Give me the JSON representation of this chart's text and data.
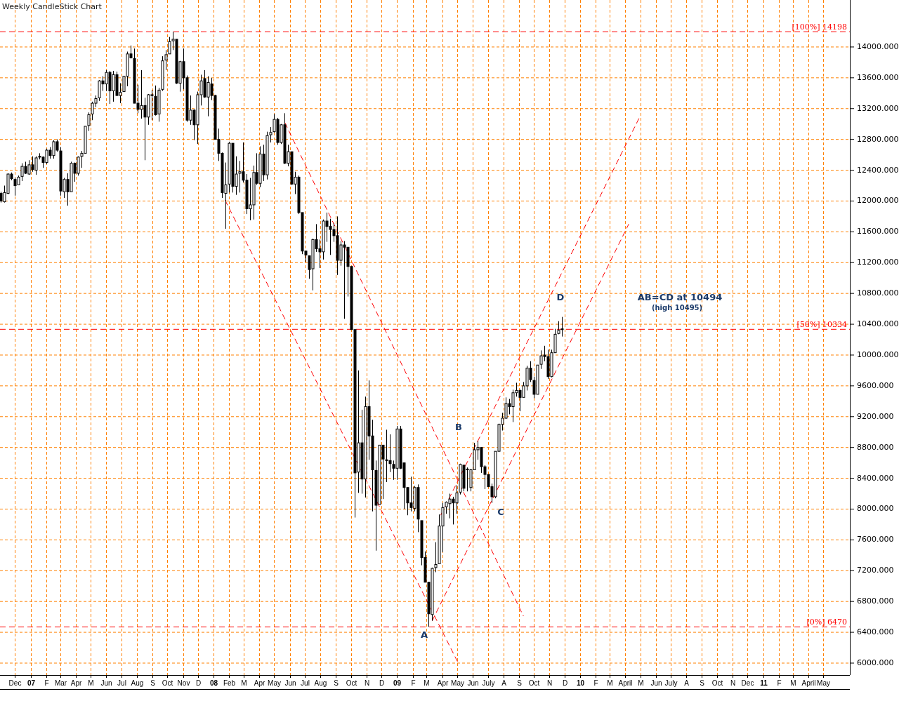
{
  "chart_data": {
    "type": "candlestick",
    "title": "Weekly CandleStick Chart",
    "x": [
      "2006-11-02",
      "2006-11-09",
      "2006-11-16",
      "2006-11-23",
      "2006-11-30",
      "2006-12-07",
      "2006-12-14",
      "2006-12-21",
      "2006-12-28",
      "2007-01-04",
      "2007-01-11",
      "2007-01-18",
      "2007-01-25",
      "2007-02-01",
      "2007-02-08",
      "2007-02-15",
      "2007-02-22",
      "2007-03-01",
      "2007-03-08",
      "2007-03-15",
      "2007-03-22",
      "2007-03-29",
      "2007-04-05",
      "2007-04-12",
      "2007-04-19",
      "2007-04-26",
      "2007-05-03",
      "2007-05-10",
      "2007-05-17",
      "2007-05-24",
      "2007-05-31",
      "2007-06-07",
      "2007-06-14",
      "2007-06-21",
      "2007-06-28",
      "2007-07-05",
      "2007-07-12",
      "2007-07-19",
      "2007-07-26",
      "2007-08-02",
      "2007-08-09",
      "2007-08-16",
      "2007-08-23",
      "2007-08-30",
      "2007-09-06",
      "2007-09-13",
      "2007-09-20",
      "2007-09-27",
      "2007-10-04",
      "2007-10-11",
      "2007-10-18",
      "2007-10-25",
      "2007-11-01",
      "2007-11-08",
      "2007-11-15",
      "2007-11-22",
      "2007-11-29",
      "2007-12-06",
      "2007-12-13",
      "2007-12-20",
      "2007-12-27",
      "2008-01-03",
      "2008-01-10",
      "2008-01-17",
      "2008-01-24",
      "2008-01-31",
      "2008-02-07",
      "2008-02-14",
      "2008-02-21",
      "2008-02-28",
      "2008-03-06",
      "2008-03-13",
      "2008-03-20",
      "2008-03-27",
      "2008-04-03",
      "2008-04-10",
      "2008-04-17",
      "2008-04-24",
      "2008-05-01",
      "2008-05-08",
      "2008-05-15",
      "2008-05-22",
      "2008-05-29",
      "2008-06-05",
      "2008-06-12",
      "2008-06-19",
      "2008-06-26",
      "2008-07-03",
      "2008-07-10",
      "2008-07-17",
      "2008-07-24",
      "2008-07-31",
      "2008-08-07",
      "2008-08-14",
      "2008-08-21",
      "2008-08-28",
      "2008-09-04",
      "2008-09-11",
      "2008-09-18",
      "2008-09-25",
      "2008-10-02",
      "2008-10-09",
      "2008-10-16",
      "2008-10-23",
      "2008-10-30",
      "2008-11-06",
      "2008-11-13",
      "2008-11-20",
      "2008-11-27",
      "2008-12-04",
      "2008-12-11",
      "2008-12-18",
      "2008-12-25",
      "2009-01-01",
      "2009-01-08",
      "2009-01-15",
      "2009-01-22",
      "2009-01-29",
      "2009-02-05",
      "2009-02-12",
      "2009-02-19",
      "2009-02-26",
      "2009-03-05",
      "2009-03-12",
      "2009-03-19",
      "2009-03-26",
      "2009-04-02",
      "2009-04-09",
      "2009-04-16",
      "2009-04-23",
      "2009-04-30",
      "2009-05-07",
      "2009-05-14",
      "2009-05-21",
      "2009-05-28",
      "2009-06-04",
      "2009-06-11",
      "2009-06-18",
      "2009-06-25",
      "2009-07-02",
      "2009-07-09",
      "2009-07-16",
      "2009-07-23",
      "2009-07-30",
      "2009-08-06",
      "2009-08-13",
      "2009-08-20",
      "2009-08-27",
      "2009-09-03",
      "2009-09-10",
      "2009-09-17",
      "2009-09-24",
      "2009-10-01",
      "2009-10-08",
      "2009-10-15",
      "2009-10-22",
      "2009-10-29",
      "2009-11-05",
      "2009-11-12",
      "2009-11-19",
      "2009-11-26"
    ],
    "ohlc": [
      [
        12100,
        12120,
        11980,
        12000
      ],
      [
        11990,
        12200,
        11980,
        12110
      ],
      [
        12100,
        12360,
        12090,
        12350
      ],
      [
        12350,
        12370,
        12270,
        12290
      ],
      [
        12280,
        12300,
        12070,
        12200
      ],
      [
        12210,
        12330,
        12210,
        12310
      ],
      [
        12320,
        12490,
        12260,
        12450
      ],
      [
        12450,
        12510,
        12350,
        12360
      ],
      [
        12350,
        12530,
        12340,
        12470
      ],
      [
        12470,
        12580,
        12380,
        12410
      ],
      [
        12400,
        12580,
        12340,
        12560
      ],
      [
        12580,
        12620,
        12540,
        12570
      ],
      [
        12570,
        12580,
        12430,
        12500
      ],
      [
        12500,
        12680,
        12480,
        12660
      ],
      [
        12660,
        12700,
        12550,
        12590
      ],
      [
        12590,
        12790,
        12550,
        12770
      ],
      [
        12770,
        12800,
        12640,
        12660
      ],
      [
        12650,
        12700,
        12070,
        12130
      ],
      [
        12120,
        12300,
        12040,
        12280
      ],
      [
        12280,
        12360,
        11940,
        12120
      ],
      [
        12120,
        12510,
        12120,
        12490
      ],
      [
        12490,
        12500,
        12250,
        12360
      ],
      [
        12360,
        12580,
        12330,
        12570
      ],
      [
        12580,
        12650,
        12430,
        12620
      ],
      [
        12620,
        12970,
        12620,
        12970
      ],
      [
        12980,
        13150,
        12910,
        13120
      ],
      [
        13130,
        13290,
        13050,
        13270
      ],
      [
        13270,
        13370,
        13220,
        13330
      ],
      [
        13340,
        13570,
        13300,
        13560
      ],
      [
        13560,
        13620,
        13430,
        13520
      ],
      [
        13520,
        13700,
        13430,
        13670
      ],
      [
        13670,
        13690,
        13260,
        13430
      ],
      [
        13430,
        13690,
        13290,
        13640
      ],
      [
        13640,
        13680,
        13370,
        13370
      ],
      [
        13370,
        13530,
        13270,
        13410
      ],
      [
        13420,
        13620,
        13420,
        13620
      ],
      [
        13620,
        13940,
        13490,
        13910
      ],
      [
        13910,
        14020,
        13850,
        13860
      ],
      [
        13850,
        13980,
        13270,
        13270
      ],
      [
        13270,
        13510,
        13140,
        13190
      ],
      [
        13190,
        13700,
        13070,
        13240
      ],
      [
        13240,
        13340,
        12530,
        13090
      ],
      [
        13090,
        13390,
        12990,
        13380
      ],
      [
        13380,
        13440,
        13050,
        13370
      ],
      [
        13360,
        13500,
        13110,
        13120
      ],
      [
        13130,
        13470,
        13030,
        13440
      ],
      [
        13450,
        13880,
        13430,
        13820
      ],
      [
        13830,
        13960,
        13700,
        13900
      ],
      [
        13910,
        14130,
        13910,
        14070
      ],
      [
        14080,
        14198,
        13960,
        14100
      ],
      [
        14100,
        14100,
        13520,
        13530
      ],
      [
        13530,
        13820,
        13420,
        13810
      ],
      [
        13810,
        13980,
        13450,
        13600
      ],
      [
        13600,
        13630,
        13030,
        13050
      ],
      [
        13050,
        13370,
        12990,
        13180
      ],
      [
        13180,
        13190,
        12790,
        12990
      ],
      [
        12990,
        13420,
        12740,
        13380
      ],
      [
        13380,
        13640,
        13240,
        13560
      ],
      [
        13590,
        13700,
        13340,
        13350
      ],
      [
        13350,
        13620,
        13100,
        13540
      ],
      [
        13520,
        13600,
        13310,
        13370
      ],
      [
        13370,
        13380,
        12800,
        12800
      ],
      [
        12800,
        12940,
        12520,
        12620
      ],
      [
        12620,
        12630,
        12040,
        12110
      ],
      [
        12100,
        12500,
        11640,
        12210
      ],
      [
        12220,
        12770,
        12110,
        12750
      ],
      [
        12750,
        12750,
        12110,
        12190
      ],
      [
        12190,
        12580,
        12080,
        12350
      ],
      [
        12360,
        12520,
        12110,
        12380
      ],
      [
        12380,
        12760,
        12240,
        12270
      ],
      [
        12270,
        12350,
        11830,
        11900
      ],
      [
        11900,
        12300,
        11750,
        11950
      ],
      [
        11950,
        12460,
        11760,
        12370
      ],
      [
        12370,
        12620,
        12210,
        12230
      ],
      [
        12230,
        12710,
        12180,
        12610
      ],
      [
        12610,
        12730,
        12260,
        12340
      ],
      [
        12340,
        12900,
        12280,
        12850
      ],
      [
        12860,
        12960,
        12760,
        12890
      ],
      [
        12900,
        13130,
        12890,
        13060
      ],
      [
        13060,
        13080,
        12730,
        12760
      ],
      [
        12760,
        13000,
        12740,
        12990
      ],
      [
        12990,
        13140,
        12480,
        12490
      ],
      [
        12490,
        12730,
        12450,
        12640
      ],
      [
        12640,
        12640,
        12210,
        12220
      ],
      [
        12220,
        12380,
        12090,
        12310
      ],
      [
        12310,
        12330,
        11830,
        11850
      ],
      [
        11850,
        11850,
        11310,
        11350
      ],
      [
        11350,
        11350,
        11210,
        11300
      ],
      [
        11290,
        11290,
        10990,
        11110
      ],
      [
        11120,
        11510,
        10840,
        11500
      ],
      [
        11500,
        11700,
        11340,
        11380
      ],
      [
        11380,
        11500,
        11130,
        11340
      ],
      [
        11340,
        11760,
        11240,
        11740
      ],
      [
        11740,
        11850,
        11470,
        11670
      ],
      [
        11670,
        11770,
        11300,
        11630
      ],
      [
        11630,
        11710,
        11470,
        11550
      ],
      [
        11550,
        11800,
        11040,
        11230
      ],
      [
        11230,
        11480,
        11160,
        11430
      ],
      [
        11430,
        11480,
        10470,
        11400
      ],
      [
        11400,
        11400,
        10760,
        11150
      ],
      [
        11150,
        11150,
        10330,
        10330
      ],
      [
        10330,
        10330,
        7890,
        8470
      ],
      [
        8480,
        9800,
        8210,
        8860
      ],
      [
        8860,
        9290,
        8200,
        8390
      ],
      [
        8390,
        9460,
        8150,
        9330
      ],
      [
        9330,
        9670,
        8640,
        8950
      ],
      [
        8950,
        9160,
        7970,
        8510
      ],
      [
        8500,
        8630,
        7460,
        8050
      ],
      [
        8060,
        8830,
        8060,
        8830
      ],
      [
        8830,
        8830,
        8130,
        8650
      ],
      [
        8640,
        9030,
        8350,
        8630
      ],
      [
        8630,
        8970,
        8480,
        8590
      ],
      [
        8580,
        8630,
        8380,
        8530
      ],
      [
        8530,
        9080,
        8380,
        9040
      ],
      [
        9040,
        9080,
        8520,
        8530
      ],
      [
        8600,
        8600,
        8000,
        8280
      ],
      [
        8280,
        8280,
        7920,
        8080
      ],
      [
        8080,
        8420,
        7970,
        8020
      ],
      [
        8010,
        8300,
        7970,
        8280
      ],
      [
        8280,
        8320,
        7700,
        7870
      ],
      [
        7850,
        7850,
        7270,
        7370
      ],
      [
        7370,
        7450,
        7050,
        7050
      ],
      [
        7050,
        7050,
        6470,
        6640
      ],
      [
        6630,
        7240,
        6550,
        7230
      ],
      [
        7240,
        7570,
        7180,
        7280
      ],
      [
        7290,
        7930,
        7290,
        7780
      ],
      [
        7780,
        8080,
        7440,
        8020
      ],
      [
        8030,
        8100,
        7940,
        8090
      ],
      [
        8070,
        8200,
        7880,
        8130
      ],
      [
        8130,
        8160,
        7800,
        8080
      ],
      [
        8080,
        8310,
        7940,
        8210
      ],
      [
        8220,
        8590,
        8190,
        8580
      ],
      [
        8570,
        8570,
        8230,
        8270
      ],
      [
        8520,
        8540,
        8230,
        8510
      ],
      [
        8280,
        8520,
        8230,
        8510
      ],
      [
        8510,
        8860,
        8510,
        8770
      ],
      [
        8770,
        8880,
        8640,
        8800
      ],
      [
        8800,
        8800,
        8470,
        8550
      ],
      [
        8550,
        8570,
        8260,
        8450
      ],
      [
        8450,
        8450,
        8290,
        8290
      ],
      [
        8290,
        8330,
        8080,
        8160
      ],
      [
        8160,
        8750,
        8140,
        8750
      ],
      [
        8750,
        9110,
        8750,
        9100
      ],
      [
        9100,
        9250,
        9020,
        9180
      ],
      [
        9180,
        9450,
        9170,
        9370
      ],
      [
        9370,
        9430,
        9230,
        9330
      ],
      [
        9330,
        9550,
        9130,
        9510
      ],
      [
        9510,
        9640,
        9460,
        9540
      ],
      [
        9540,
        9550,
        9270,
        9450
      ],
      [
        9450,
        9650,
        9450,
        9600
      ],
      [
        9600,
        9860,
        9540,
        9830
      ],
      [
        9830,
        9920,
        9650,
        9680
      ],
      [
        9670,
        9720,
        9440,
        9490
      ],
      [
        9490,
        9870,
        9490,
        9870
      ],
      [
        9880,
        10060,
        9820,
        9990
      ],
      [
        10000,
        10120,
        9920,
        9980
      ],
      [
        9980,
        10070,
        9690,
        9720
      ],
      [
        9720,
        10070,
        9710,
        10030
      ],
      [
        10030,
        10340,
        10030,
        10270
      ],
      [
        10280,
        10440,
        10270,
        10320
      ],
      [
        10340,
        10495,
        10240,
        10330
      ]
    ],
    "series": [
      {
        "type": "line",
        "color": "#ff0000",
        "line_style": "dashed",
        "x": [
          "2008-05-22",
          "2009-09-10"
        ],
        "values": [
          13020,
          6610
        ]
      },
      {
        "type": "line",
        "color": "#ff0000",
        "line_style": "dashed",
        "x": [
          "2008-01-24",
          "2009-05-03"
        ],
        "values": [
          12010,
          6000
        ]
      },
      {
        "type": "line",
        "color": "#ff0000",
        "line_style": "dashed",
        "x": [
          "2009-03-12",
          "2010-04-08"
        ],
        "values": [
          6550,
          11700
        ]
      },
      {
        "type": "line",
        "color": "#ff0000",
        "line_style": "dashed",
        "x": [
          "2009-03-29",
          "2010-04-29"
        ],
        "values": [
          7920,
          13080
        ]
      }
    ],
    "xlim": [
      "2006-11-01",
      "2011-06-23"
    ],
    "ylim": [
      5845,
      14610
    ],
    "xticks": [
      {
        "value": "2006-12-01",
        "label": "Dec"
      },
      {
        "value": "2007-01-01",
        "label": "07"
      },
      {
        "value": "2007-02-01",
        "label": "F"
      },
      {
        "value": "2007-03-01",
        "label": "Mar"
      },
      {
        "value": "2007-04-01",
        "label": "Apr"
      },
      {
        "value": "2007-05-01",
        "label": "M"
      },
      {
        "value": "2007-06-01",
        "label": "Jun"
      },
      {
        "value": "2007-07-01",
        "label": "Jul"
      },
      {
        "value": "2007-08-01",
        "label": "Aug"
      },
      {
        "value": "2007-09-01",
        "label": "S"
      },
      {
        "value": "2007-10-01",
        "label": "Oct"
      },
      {
        "value": "2007-11-01",
        "label": "Nov"
      },
      {
        "value": "2007-12-01",
        "label": "D"
      },
      {
        "value": "2008-01-01",
        "label": "08"
      },
      {
        "value": "2008-02-01",
        "label": "Feb"
      },
      {
        "value": "2008-03-01",
        "label": "M"
      },
      {
        "value": "2008-04-01",
        "label": "Apr"
      },
      {
        "value": "2008-05-01",
        "label": "May"
      },
      {
        "value": "2008-06-01",
        "label": "Jun"
      },
      {
        "value": "2008-07-01",
        "label": "Jul"
      },
      {
        "value": "2008-08-01",
        "label": "Aug"
      },
      {
        "value": "2008-09-01",
        "label": "S"
      },
      {
        "value": "2008-10-01",
        "label": "Oct"
      },
      {
        "value": "2008-11-01",
        "label": "N"
      },
      {
        "value": "2008-12-01",
        "label": "D"
      },
      {
        "value": "2009-01-01",
        "label": "09"
      },
      {
        "value": "2009-02-01",
        "label": "F"
      },
      {
        "value": "2009-03-01",
        "label": "M"
      },
      {
        "value": "2009-04-01",
        "label": "Apr"
      },
      {
        "value": "2009-05-01",
        "label": "May"
      },
      {
        "value": "2009-06-01",
        "label": "Jun"
      },
      {
        "value": "2009-07-01",
        "label": "July"
      },
      {
        "value": "2009-08-01",
        "label": "A"
      },
      {
        "value": "2009-09-01",
        "label": "S"
      },
      {
        "value": "2009-10-01",
        "label": "Oct"
      },
      {
        "value": "2009-11-01",
        "label": "N"
      },
      {
        "value": "2009-12-01",
        "label": "D"
      },
      {
        "value": "2010-01-01",
        "label": "10"
      },
      {
        "value": "2010-02-01",
        "label": "F"
      },
      {
        "value": "2010-03-01",
        "label": "M"
      },
      {
        "value": "2010-04-01",
        "label": "April"
      },
      {
        "value": "2010-05-01",
        "label": "M"
      },
      {
        "value": "2010-06-01",
        "label": "Jun"
      },
      {
        "value": "2010-07-01",
        "label": "July"
      },
      {
        "value": "2010-08-01",
        "label": "A"
      },
      {
        "value": "2010-09-01",
        "label": "S"
      },
      {
        "value": "2010-10-01",
        "label": "Oct"
      },
      {
        "value": "2010-11-01",
        "label": "N"
      },
      {
        "value": "2010-12-01",
        "label": "Dec"
      },
      {
        "value": "2011-01-01",
        "label": "11"
      },
      {
        "value": "2011-02-01",
        "label": "F"
      },
      {
        "value": "2011-03-01",
        "label": "M"
      },
      {
        "value": "2011-04-01",
        "label": "April"
      },
      {
        "value": "2011-05-01",
        "label": "May"
      }
    ],
    "yticks": [
      {
        "value": 6000,
        "label": "6000.000"
      },
      {
        "value": 6400,
        "label": "6400.000"
      },
      {
        "value": 6800,
        "label": "6800.000"
      },
      {
        "value": 7200,
        "label": "7200.000"
      },
      {
        "value": 7600,
        "label": "7600.000"
      },
      {
        "value": 8000,
        "label": "8000.000"
      },
      {
        "value": 8400,
        "label": "8400.000"
      },
      {
        "value": 8800,
        "label": "8800.000"
      },
      {
        "value": 9200,
        "label": "9200.000"
      },
      {
        "value": 9600,
        "label": "9600.000"
      },
      {
        "value": 10000,
        "label": "10000.000"
      },
      {
        "value": 10400,
        "label": "10400.000"
      },
      {
        "value": 10800,
        "label": "10800.000"
      },
      {
        "value": 11200,
        "label": "11200.000"
      },
      {
        "value": 11600,
        "label": "11600.000"
      },
      {
        "value": 12000,
        "label": "12000.000"
      },
      {
        "value": 12400,
        "label": "12400.000"
      },
      {
        "value": 12800,
        "label": "12800.000"
      },
      {
        "value": 13200,
        "label": "13200.000"
      },
      {
        "value": 13600,
        "label": "13600.000"
      },
      {
        "value": 14000,
        "label": "14000.000"
      }
    ],
    "grid": true,
    "ref_lines": [
      {
        "axis": "y",
        "value": 14198,
        "label": "[100%] 14198",
        "color": "#ff0000",
        "line_style": "dashed"
      },
      {
        "axis": "y",
        "value": 10334,
        "label": "[50%] 10334",
        "color": "#ff0000",
        "line_style": "dashed"
      },
      {
        "axis": "y",
        "value": 6470,
        "label": "[0%] 6470",
        "color": "#ff0000",
        "line_style": "dashed"
      }
    ],
    "annotations": [
      "A",
      "B",
      "C",
      "D",
      "AB=CD at 10494",
      "(high 10495)"
    ]
  }
}
